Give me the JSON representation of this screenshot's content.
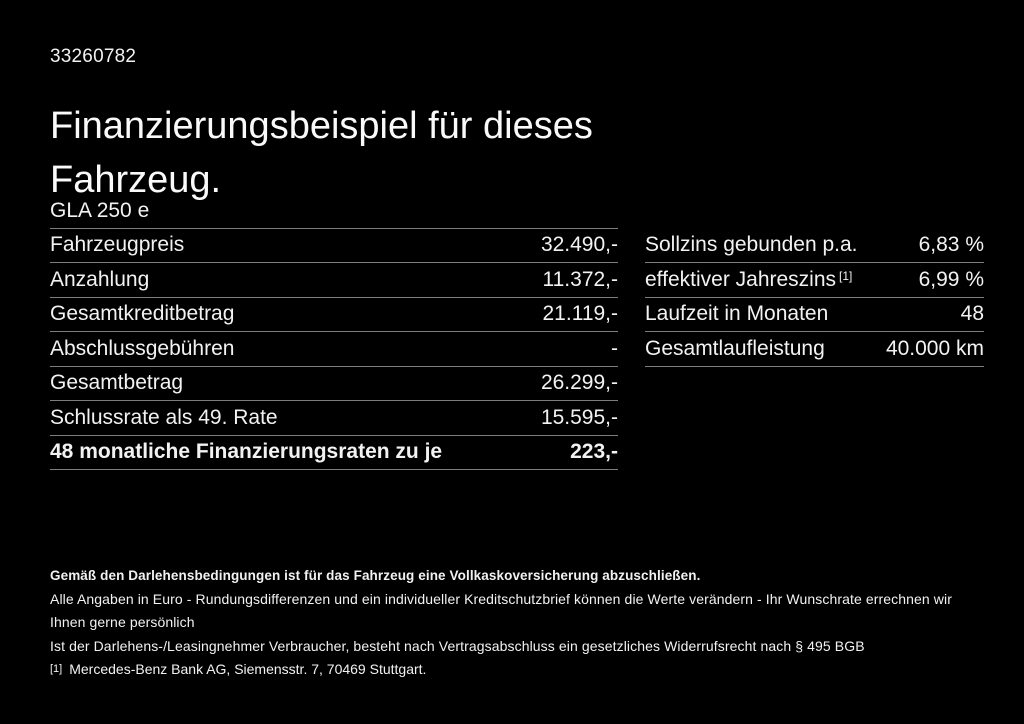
{
  "colors": {
    "background": "#000000",
    "text": "#f2f2f2",
    "divider": "#7d7d7d"
  },
  "page": {
    "doc_id": "33260782",
    "title": "Finanzierungsbeispiel für dieses Fahrzeug.",
    "model": "GLA 250 e"
  },
  "finance_table": {
    "rows": [
      {
        "label": "Fahrzeugpreis",
        "value": "32.490,-"
      },
      {
        "label": "Anzahlung",
        "value": "11.372,-"
      },
      {
        "label": "Gesamtkreditbetrag",
        "value": "21.119,-"
      },
      {
        "label": "Abschlussgebühren",
        "value": "-"
      },
      {
        "label": "Gesamtbetrag",
        "value": "26.299,-"
      },
      {
        "label": "Schlussrate als 49. Rate",
        "value": "15.595,-"
      },
      {
        "label": "48 monatliche Finanzierungsraten zu je",
        "value": "223,-"
      }
    ]
  },
  "conditions_table": {
    "rows": [
      {
        "label": "Sollzins gebunden p.a.",
        "value": "6,83 %"
      },
      {
        "label": "effektiver Jahreszins",
        "sup": "[1]",
        "value": "6,99 %"
      },
      {
        "label": "Laufzeit in Monaten",
        "value": "48"
      },
      {
        "label": "Gesamtlaufleistung",
        "value": "40.000 km"
      }
    ]
  },
  "footer": {
    "bold_note": "Gemäß den Darlehensbedingungen ist für das Fahrzeug eine Vollkaskoversicherung abzuschließen.",
    "note_line_1": "Alle Angaben in Euro - Rundungsdifferenzen und ein individueller Kreditschutzbrief können die Werte verändern - Ihr Wunschrate errechnen wir Ihnen gerne persönlich",
    "note_line_2": "Ist der Darlehens-/Leasingnehmer Verbraucher, besteht nach Vertragsabschluss ein gesetzliches Widerrufsrecht nach § 495 BGB",
    "footnote_marker": "[1]",
    "footnote_text": "Mercedes-Benz Bank AG, Siemensstr. 7, 70469 Stuttgart."
  }
}
